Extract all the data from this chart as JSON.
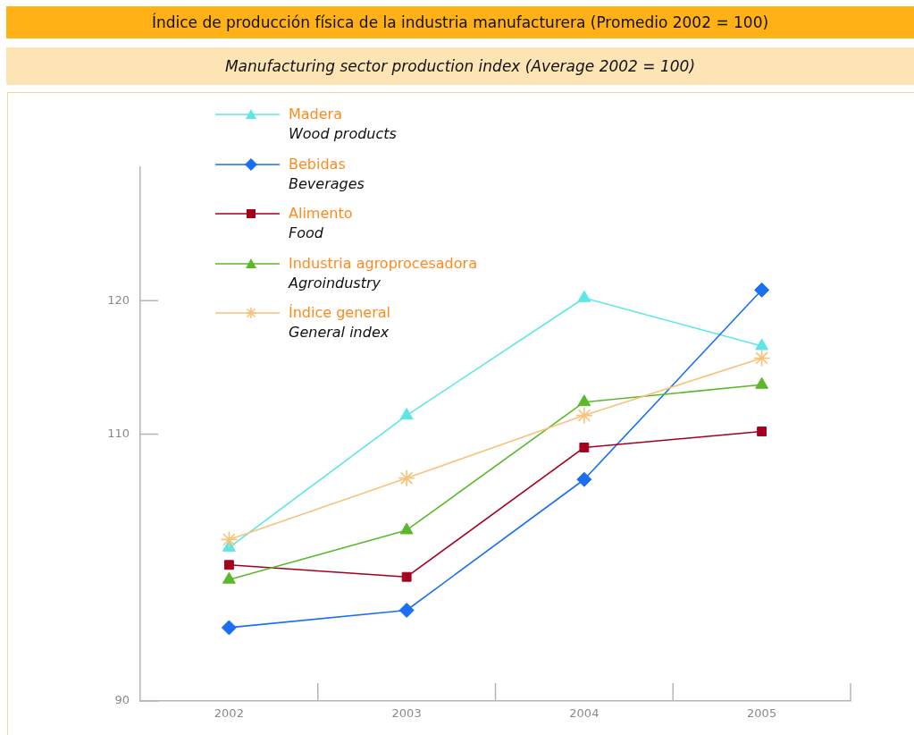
{
  "chart_data": {
    "type": "line",
    "title": "Índice de producción física de la industria manufacturera (Promedio 2002 = 100)",
    "subtitle": "Manufacturing sector production index (Average 2002 = 100)",
    "categories": [
      "2002",
      "2003",
      "2004",
      "2005"
    ],
    "series": [
      {
        "name": "Madera\nWood products",
        "color": "#5ee6e6",
        "marker": "triangle",
        "values": [
          101.5,
          111.4,
          120.2,
          116.6
        ]
      },
      {
        "name": "Bebidas\nBeverages",
        "color": "#1a6ff0",
        "marker": "diamond",
        "values": [
          95.5,
          96.8,
          106.6,
          120.8
        ]
      },
      {
        "name": "Alimento\nFood",
        "color": "#a3001e",
        "marker": "square",
        "values": [
          100.2,
          99.3,
          109.0,
          110.2
        ]
      },
      {
        "name": "Industria agroprocesadora\nAgroindustry",
        "color": "#5cb82a",
        "marker": "triangle",
        "values": [
          99.1,
          102.8,
          112.4,
          113.7
        ]
      },
      {
        "name": "Índice general\nGeneral index",
        "color": "#f7c27a",
        "marker": "cross",
        "values": [
          102.1,
          106.7,
          111.4,
          115.7
        ]
      }
    ],
    "ylim": [
      90,
      130
    ],
    "yticks": [
      90,
      110,
      120
    ],
    "grid": false,
    "legend": "top left",
    "line_style": "solid"
  }
}
